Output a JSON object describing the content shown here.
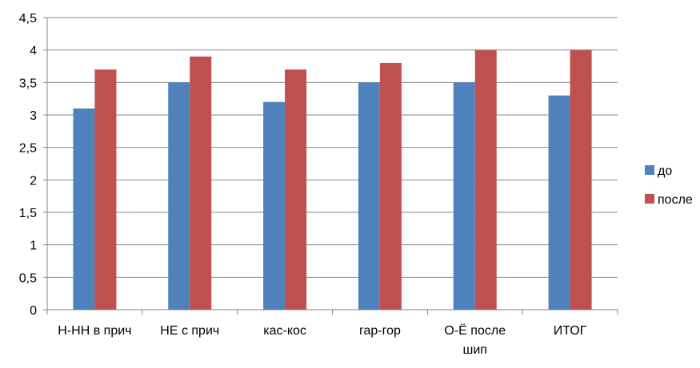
{
  "chart_data": {
    "type": "bar",
    "categories": [
      [
        "Н-НН в прич"
      ],
      [
        "НЕ с прич"
      ],
      [
        "кас-кос"
      ],
      [
        "гар-гор"
      ],
      [
        "О-Ё после",
        "шип"
      ],
      [
        "ИТОГ"
      ]
    ],
    "series": [
      {
        "name": "до",
        "values": [
          3.1,
          3.5,
          3.2,
          3.5,
          3.5,
          3.3
        ],
        "color": "#4f81bd"
      },
      {
        "name": "после",
        "values": [
          3.7,
          3.9,
          3.7,
          3.8,
          4.0,
          4.0
        ],
        "color": "#c0504d"
      }
    ],
    "yticks": [
      "0",
      "0,5",
      "1",
      "1,5",
      "2",
      "2,5",
      "3",
      "3,5",
      "4",
      "4,5"
    ],
    "ylim": [
      0,
      4.5
    ],
    "grid": true,
    "legend_position": "right"
  }
}
